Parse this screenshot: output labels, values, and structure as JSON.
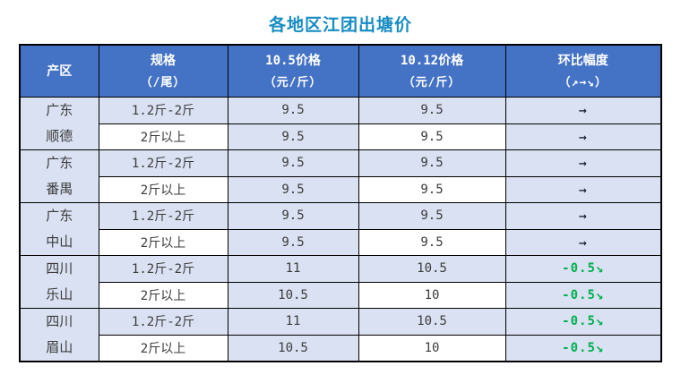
{
  "title": "各地区江团出塘价",
  "colors": {
    "title_text": "#158CC3",
    "header_bg": "#4472C4",
    "header_text": "#FFFFFF",
    "row_light_blue": "#D9E1F2",
    "row_white": "#FFFFFF",
    "body_text": "#3B3B3B",
    "down_green": "#00B050",
    "flat_arrow": "#10101E",
    "grid_border": "#000000"
  },
  "table": {
    "headers": [
      {
        "line1": "产区",
        "line2": ""
      },
      {
        "line1": "规格",
        "line2": "（/尾）"
      },
      {
        "line1": "10.5价格",
        "line2": "（元/斤）"
      },
      {
        "line1": "10.12价格",
        "line2": "（元/斤）"
      },
      {
        "line1": "环比幅度",
        "line2": "（↗→↘）"
      }
    ],
    "groups": [
      {
        "region_line1": "广东",
        "region_line2": "顺德",
        "rows": [
          {
            "spec": "1.2斤-2斤",
            "price_105": "9.5",
            "price_1012": "9.5",
            "change": "→",
            "trend": "flat"
          },
          {
            "spec": "2斤以上",
            "price_105": "9.5",
            "price_1012": "9.5",
            "change": "→",
            "trend": "flat"
          }
        ]
      },
      {
        "region_line1": "广东",
        "region_line2": "番禺",
        "rows": [
          {
            "spec": "1.2斤-2斤",
            "price_105": "9.5",
            "price_1012": "9.5",
            "change": "→",
            "trend": "flat"
          },
          {
            "spec": "2斤以上",
            "price_105": "9.5",
            "price_1012": "9.5",
            "change": "→",
            "trend": "flat"
          }
        ]
      },
      {
        "region_line1": "广东",
        "region_line2": "中山",
        "rows": [
          {
            "spec": "1.2斤-2斤",
            "price_105": "9.5",
            "price_1012": "9.5",
            "change": "→",
            "trend": "flat"
          },
          {
            "spec": "2斤以上",
            "price_105": "9.5",
            "price_1012": "9.5",
            "change": "→",
            "trend": "flat"
          }
        ]
      },
      {
        "region_line1": "四川",
        "region_line2": "乐山",
        "rows": [
          {
            "spec": "1.2斤-2斤",
            "price_105": "11",
            "price_1012": "10.5",
            "change": "-0.5↘",
            "trend": "down"
          },
          {
            "spec": "2斤以上",
            "price_105": "10.5",
            "price_1012": "10",
            "change": "-0.5↘",
            "trend": "down"
          }
        ]
      },
      {
        "region_line1": "四川",
        "region_line2": "眉山",
        "rows": [
          {
            "spec": "1.2斤-2斤",
            "price_105": "11",
            "price_1012": "10.5",
            "change": "-0.5↘",
            "trend": "down"
          },
          {
            "spec": "2斤以上",
            "price_105": "10.5",
            "price_1012": "10",
            "change": "-0.5↘",
            "trend": "down"
          }
        ]
      }
    ]
  },
  "chart_data": {
    "type": "table",
    "title": "各地区江团出塘价",
    "columns": [
      "产区",
      "规格（/尾）",
      "10.5价格（元/斤）",
      "10.12价格（元/斤）",
      "环比幅度（↗→↘）"
    ],
    "rows": [
      [
        "广东顺德",
        "1.2斤-2斤",
        9.5,
        9.5,
        "→"
      ],
      [
        "广东顺德",
        "2斤以上",
        9.5,
        9.5,
        "→"
      ],
      [
        "广东番禺",
        "1.2斤-2斤",
        9.5,
        9.5,
        "→"
      ],
      [
        "广东番禺",
        "2斤以上",
        9.5,
        9.5,
        "→"
      ],
      [
        "广东中山",
        "1.2斤-2斤",
        9.5,
        9.5,
        "→"
      ],
      [
        "广东中山",
        "2斤以上",
        9.5,
        9.5,
        "→"
      ],
      [
        "四川乐山",
        "1.2斤-2斤",
        11,
        10.5,
        "-0.5↘"
      ],
      [
        "四川乐山",
        "2斤以上",
        10.5,
        10,
        "-0.5↘"
      ],
      [
        "四川眉山",
        "1.2斤-2斤",
        11,
        10.5,
        "-0.5↘"
      ],
      [
        "四川眉山",
        "2斤以上",
        10.5,
        10,
        "-0.5↘"
      ]
    ]
  }
}
